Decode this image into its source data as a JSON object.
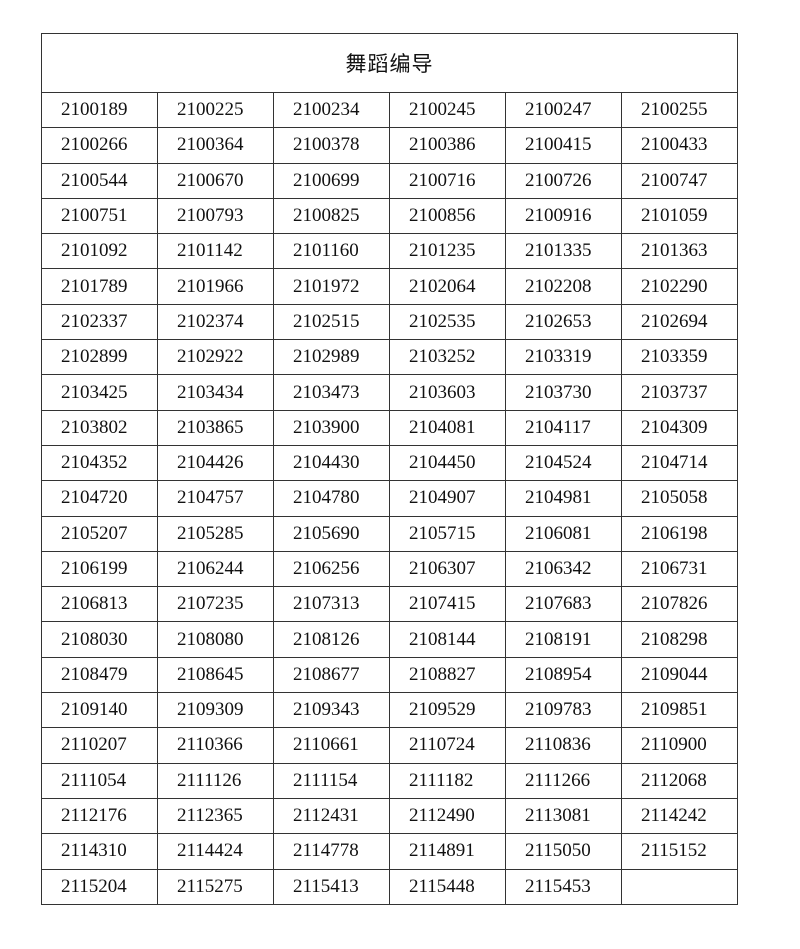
{
  "table": {
    "title": "舞蹈编导",
    "rows": [
      [
        "2100189",
        "2100225",
        "2100234",
        "2100245",
        "2100247",
        "2100255"
      ],
      [
        "2100266",
        "2100364",
        "2100378",
        "2100386",
        "2100415",
        "2100433"
      ],
      [
        "2100544",
        "2100670",
        "2100699",
        "2100716",
        "2100726",
        "2100747"
      ],
      [
        "2100751",
        "2100793",
        "2100825",
        "2100856",
        "2100916",
        "2101059"
      ],
      [
        "2101092",
        "2101142",
        "2101160",
        "2101235",
        "2101335",
        "2101363"
      ],
      [
        "2101789",
        "2101966",
        "2101972",
        "2102064",
        "2102208",
        "2102290"
      ],
      [
        "2102337",
        "2102374",
        "2102515",
        "2102535",
        "2102653",
        "2102694"
      ],
      [
        "2102899",
        "2102922",
        "2102989",
        "2103252",
        "2103319",
        "2103359"
      ],
      [
        "2103425",
        "2103434",
        "2103473",
        "2103603",
        "2103730",
        "2103737"
      ],
      [
        "2103802",
        "2103865",
        "2103900",
        "2104081",
        "2104117",
        "2104309"
      ],
      [
        "2104352",
        "2104426",
        "2104430",
        "2104450",
        "2104524",
        "2104714"
      ],
      [
        "2104720",
        "2104757",
        "2104780",
        "2104907",
        "2104981",
        "2105058"
      ],
      [
        "2105207",
        "2105285",
        "2105690",
        "2105715",
        "2106081",
        "2106198"
      ],
      [
        "2106199",
        "2106244",
        "2106256",
        "2106307",
        "2106342",
        "2106731"
      ],
      [
        "2106813",
        "2107235",
        "2107313",
        "2107415",
        "2107683",
        "2107826"
      ],
      [
        "2108030",
        "2108080",
        "2108126",
        "2108144",
        "2108191",
        "2108298"
      ],
      [
        "2108479",
        "2108645",
        "2108677",
        "2108827",
        "2108954",
        "2109044"
      ],
      [
        "2109140",
        "2109309",
        "2109343",
        "2109529",
        "2109783",
        "2109851"
      ],
      [
        "2110207",
        "2110366",
        "2110661",
        "2110724",
        "2110836",
        "2110900"
      ],
      [
        "2111054",
        "2111126",
        "2111154",
        "2111182",
        "2111266",
        "2112068"
      ],
      [
        "2112176",
        "2112365",
        "2112431",
        "2112490",
        "2113081",
        "2114242"
      ],
      [
        "2114310",
        "2114424",
        "2114778",
        "2114891",
        "2115050",
        "2115152"
      ],
      [
        "2115204",
        "2115275",
        "2115413",
        "2115448",
        "2115453",
        ""
      ]
    ]
  }
}
